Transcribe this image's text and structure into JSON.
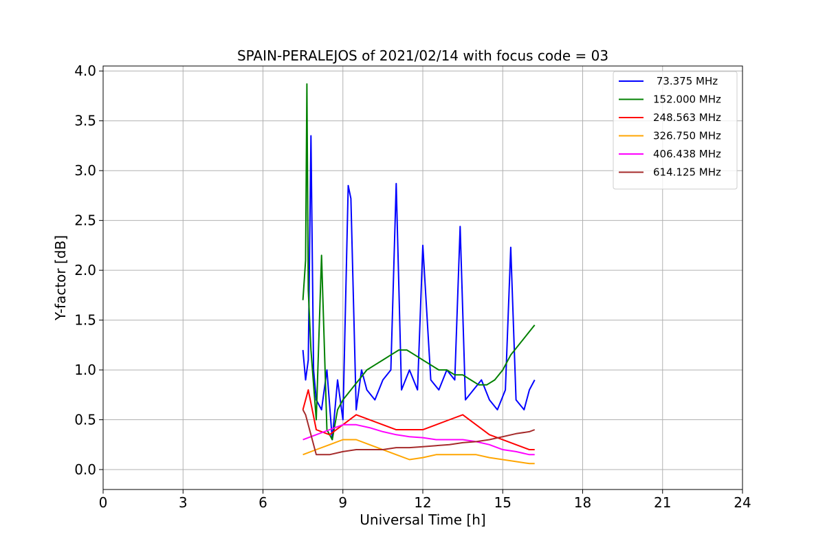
{
  "chart_data": {
    "type": "line",
    "title": "SPAIN-PERALEJOS of 2021/02/14 with focus code = 03",
    "xlabel": "Universal Time [h]",
    "ylabel": "Y-factor [dB]",
    "xlim": [
      0,
      24
    ],
    "ylim": [
      -0.2,
      4.05
    ],
    "xticks": [
      "0",
      "3",
      "6",
      "9",
      "12",
      "15",
      "18",
      "21",
      "24"
    ],
    "yticks": [
      "0.0",
      "0.5",
      "1.0",
      "1.5",
      "2.0",
      "2.5",
      "3.0",
      "3.5",
      "4.0"
    ],
    "grid": true,
    "legend_position": "top-right",
    "series": [
      {
        "name": " 73.375 MHz",
        "color": "#0000ff",
        "x": [
          7.5,
          7.6,
          7.7,
          7.8,
          7.9,
          8.0,
          8.2,
          8.4,
          8.6,
          8.8,
          9.0,
          9.2,
          9.3,
          9.5,
          9.7,
          9.9,
          10.2,
          10.5,
          10.8,
          11.0,
          11.2,
          11.5,
          11.8,
          12.0,
          12.3,
          12.6,
          12.9,
          13.2,
          13.4,
          13.6,
          13.9,
          14.2,
          14.5,
          14.8,
          15.1,
          15.3,
          15.5,
          15.8,
          16.0,
          16.2
        ],
        "y": [
          1.2,
          0.9,
          1.1,
          3.35,
          1.0,
          0.7,
          0.6,
          1.0,
          0.3,
          0.9,
          0.5,
          2.85,
          2.72,
          0.6,
          1.0,
          0.8,
          0.7,
          0.9,
          1.0,
          2.87,
          0.8,
          1.0,
          0.8,
          2.25,
          0.9,
          0.8,
          1.0,
          0.9,
          2.44,
          0.7,
          0.8,
          0.9,
          0.7,
          0.6,
          0.8,
          2.23,
          0.7,
          0.6,
          0.8,
          0.9
        ]
      },
      {
        "name": "152.000 MHz",
        "color": "#008000",
        "x": [
          7.5,
          7.6,
          7.65,
          7.7,
          7.8,
          8.0,
          8.2,
          8.4,
          8.6,
          8.8,
          9.0,
          9.3,
          9.6,
          9.9,
          10.2,
          10.5,
          10.8,
          11.1,
          11.4,
          11.7,
          12.0,
          12.3,
          12.6,
          12.9,
          13.2,
          13.5,
          13.8,
          14.1,
          14.4,
          14.7,
          15.0,
          15.3,
          15.6,
          15.9,
          16.2
        ],
        "y": [
          1.7,
          2.1,
          3.87,
          1.8,
          1.2,
          0.5,
          2.15,
          0.4,
          0.3,
          0.6,
          0.7,
          0.8,
          0.9,
          1.0,
          1.05,
          1.1,
          1.15,
          1.2,
          1.2,
          1.15,
          1.1,
          1.05,
          1.0,
          1.0,
          0.95,
          0.95,
          0.9,
          0.85,
          0.85,
          0.9,
          1.0,
          1.15,
          1.25,
          1.35,
          1.45
        ]
      },
      {
        "name": "248.563 MHz",
        "color": "#ff0000",
        "x": [
          7.5,
          7.7,
          8.0,
          8.5,
          9.0,
          9.5,
          10.0,
          10.5,
          11.0,
          11.5,
          12.0,
          12.5,
          13.0,
          13.5,
          14.0,
          14.5,
          15.0,
          15.5,
          16.0,
          16.2
        ],
        "y": [
          0.6,
          0.8,
          0.4,
          0.35,
          0.45,
          0.55,
          0.5,
          0.45,
          0.4,
          0.4,
          0.4,
          0.45,
          0.5,
          0.55,
          0.45,
          0.35,
          0.3,
          0.25,
          0.2,
          0.2
        ]
      },
      {
        "name": "326.750 MHz",
        "color": "#ffa500",
        "x": [
          7.5,
          8.0,
          8.5,
          9.0,
          9.5,
          10.0,
          10.5,
          11.0,
          11.5,
          12.0,
          12.5,
          13.0,
          13.5,
          14.0,
          14.5,
          15.0,
          15.5,
          16.0,
          16.2
        ],
        "y": [
          0.15,
          0.2,
          0.25,
          0.3,
          0.3,
          0.25,
          0.2,
          0.15,
          0.1,
          0.12,
          0.15,
          0.15,
          0.15,
          0.15,
          0.12,
          0.1,
          0.08,
          0.06,
          0.06
        ]
      },
      {
        "name": "406.438 MHz",
        "color": "#ff00ff",
        "x": [
          7.5,
          8.0,
          8.5,
          9.0,
          9.5,
          10.0,
          10.5,
          11.0,
          11.5,
          12.0,
          12.5,
          13.0,
          13.5,
          14.0,
          14.5,
          15.0,
          15.5,
          16.0,
          16.2
        ],
        "y": [
          0.3,
          0.35,
          0.4,
          0.45,
          0.45,
          0.42,
          0.38,
          0.35,
          0.33,
          0.32,
          0.3,
          0.3,
          0.3,
          0.28,
          0.25,
          0.2,
          0.18,
          0.15,
          0.15
        ]
      },
      {
        "name": "614.125 MHz",
        "color": "#a52a2a",
        "x": [
          7.5,
          7.6,
          8.0,
          8.5,
          9.0,
          9.5,
          10.0,
          10.5,
          11.0,
          11.5,
          12.0,
          12.5,
          13.0,
          13.5,
          14.0,
          14.5,
          15.0,
          15.5,
          16.0,
          16.2
        ],
        "y": [
          0.6,
          0.55,
          0.15,
          0.15,
          0.18,
          0.2,
          0.2,
          0.2,
          0.22,
          0.22,
          0.23,
          0.24,
          0.25,
          0.27,
          0.28,
          0.3,
          0.33,
          0.36,
          0.38,
          0.4
        ]
      }
    ]
  }
}
